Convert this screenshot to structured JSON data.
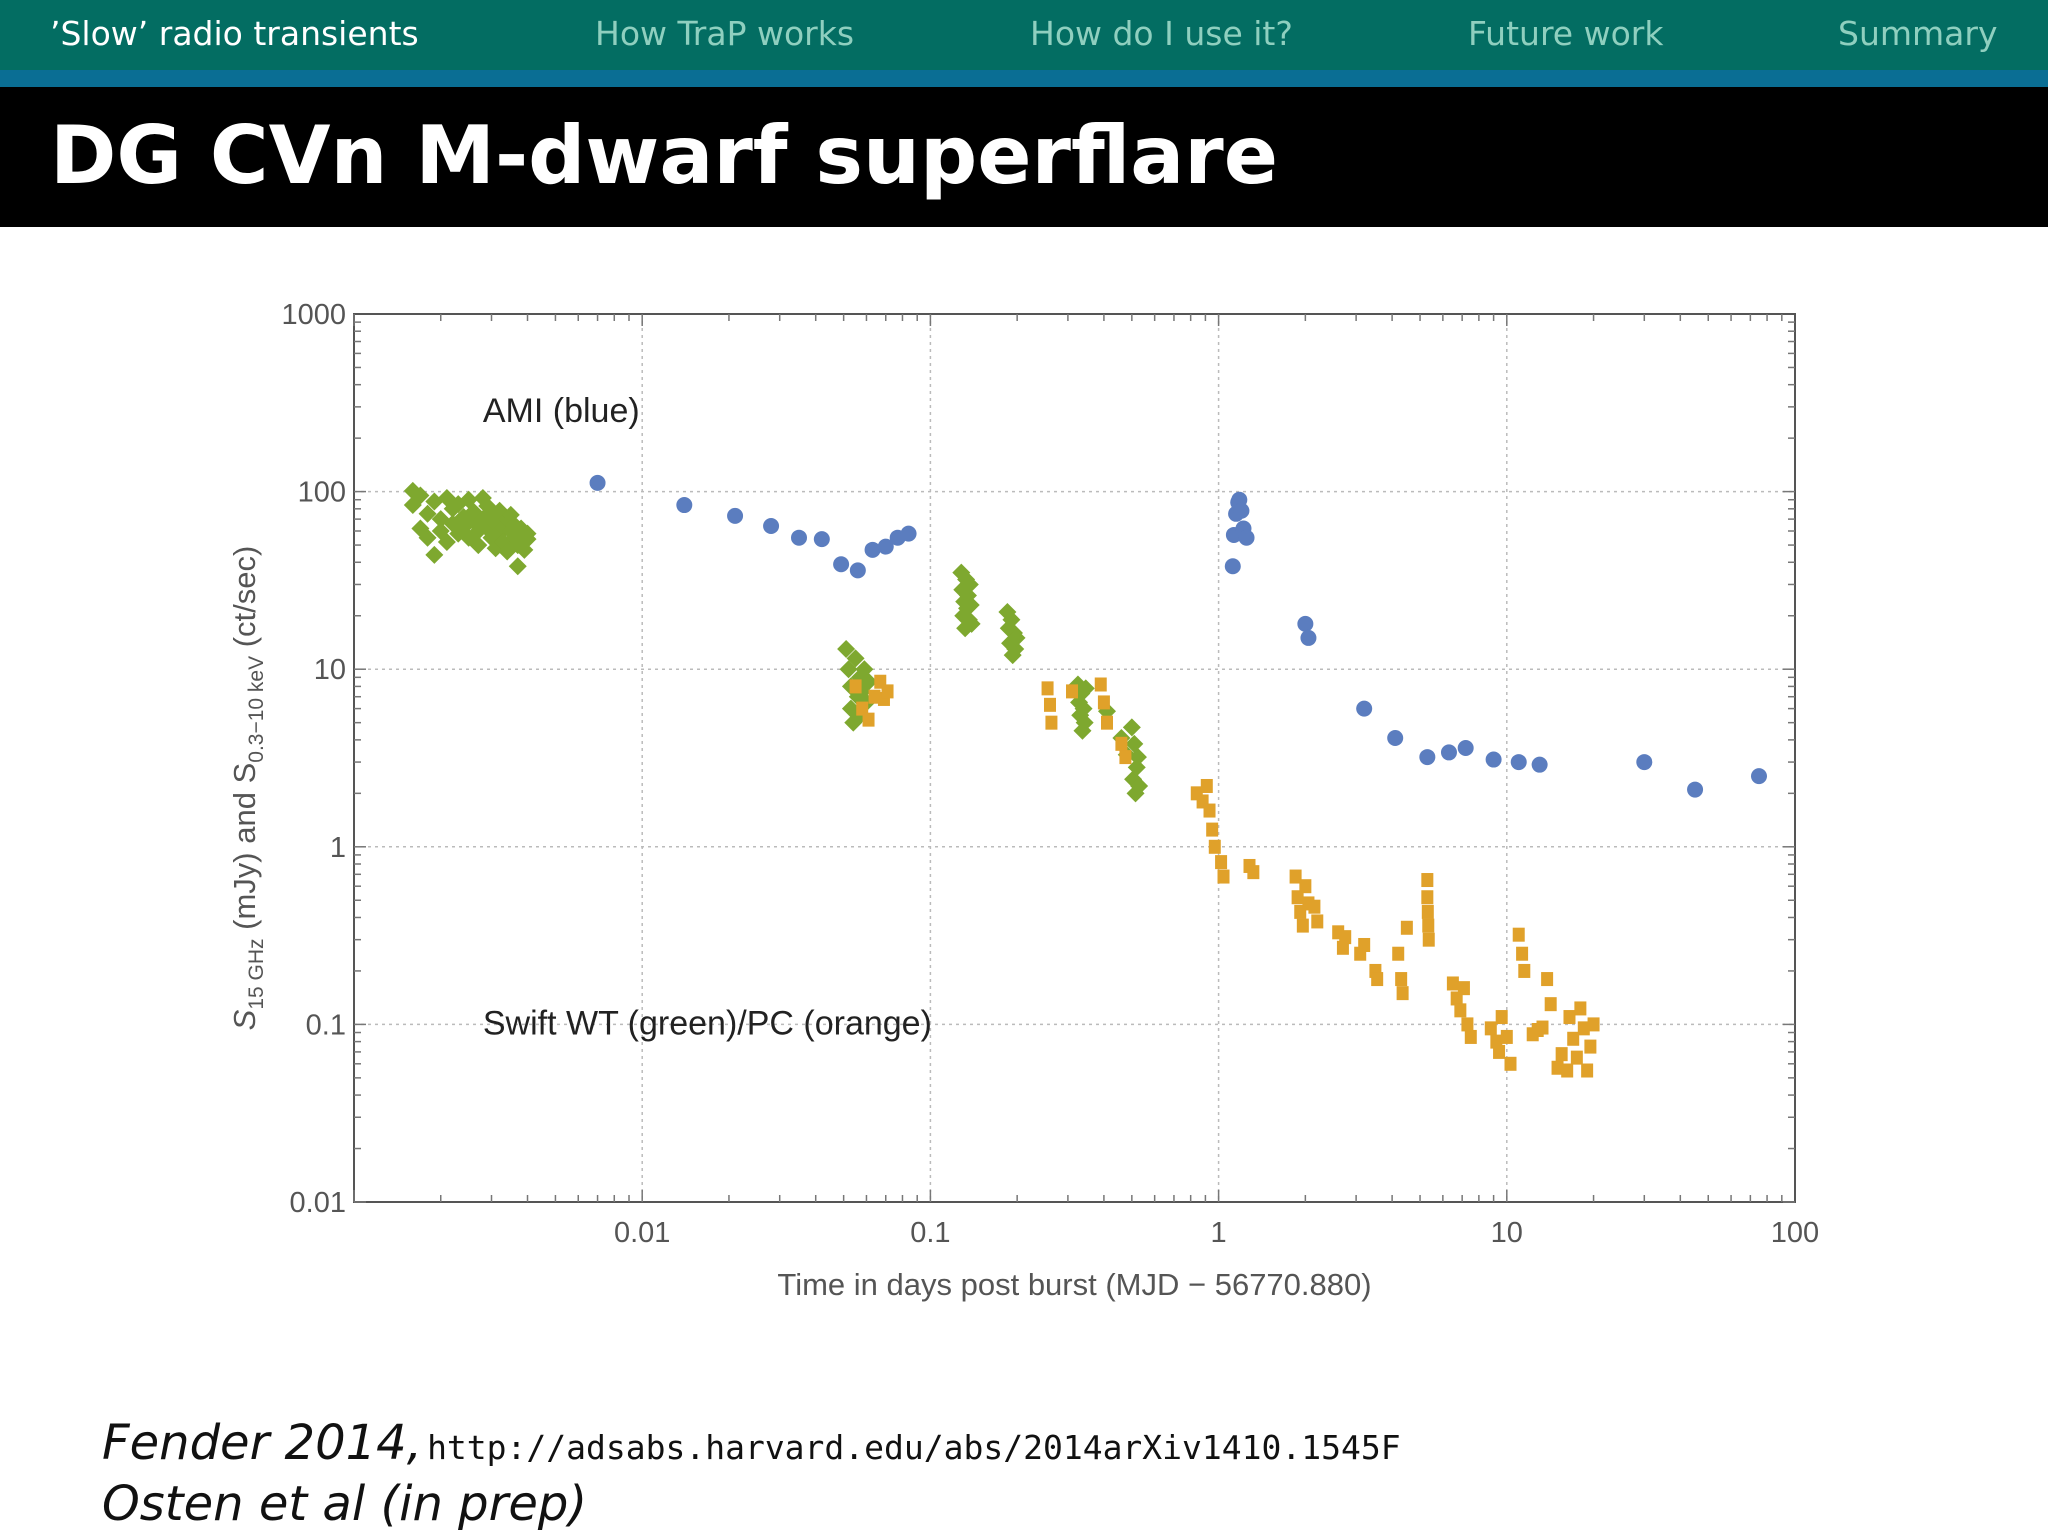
{
  "nav": {
    "items": [
      {
        "label": "’Slow’ radio transients",
        "active": true
      },
      {
        "label": "How TraP works",
        "active": false
      },
      {
        "label": "How do I use it?",
        "active": false
      },
      {
        "label": "Future work",
        "active": false
      },
      {
        "label": "Summary",
        "active": false
      }
    ]
  },
  "slide": {
    "title": "DG CVn M-dwarf superflare"
  },
  "citation": {
    "author1": "Fender 2014,",
    "url": "http://adsabs.harvard.edu/abs/2014arXiv1410.1545F",
    "author2": "Osten et al (in prep)"
  },
  "chart_data": {
    "type": "scatter",
    "xscale": "log",
    "yscale": "log",
    "xlim": [
      0.001,
      100
    ],
    "ylim": [
      0.01,
      1000
    ],
    "grid": true,
    "xticks": [
      {
        "value": 0.01,
        "label": "0.01"
      },
      {
        "value": 0.1,
        "label": "0.1"
      },
      {
        "value": 1,
        "label": "1"
      },
      {
        "value": 10,
        "label": "10"
      },
      {
        "value": 100,
        "label": "100"
      }
    ],
    "yticks": [
      {
        "value": 0.01,
        "label": "0.01"
      },
      {
        "value": 0.1,
        "label": "0.1"
      },
      {
        "value": 1,
        "label": "1"
      },
      {
        "value": 10,
        "label": "10"
      },
      {
        "value": 100,
        "label": "100"
      },
      {
        "value": 1000,
        "label": "1000"
      }
    ],
    "xlabel": "Time in days post burst (MJD − 56770.880)",
    "ylabel": {
      "p1": "S",
      "sub1": "15 GHz",
      "p2": " (mJy) and S",
      "sub2": "0.3−10 keV",
      "p3": " (ct/sec)"
    },
    "annotations": [
      {
        "text": "AMI (blue)",
        "x": 0.0028,
        "y": 280
      },
      {
        "text": "Swift WT (green)/PC (orange)",
        "x": 0.0028,
        "y": 0.1
      }
    ],
    "series": [
      {
        "color": "#5b7dbf",
        "marker": "circle",
        "points": [
          [
            0.007,
            112
          ],
          [
            0.014,
            84
          ],
          [
            0.021,
            73
          ],
          [
            0.028,
            64
          ],
          [
            0.035,
            55
          ],
          [
            0.042,
            54
          ],
          [
            0.049,
            39
          ],
          [
            0.056,
            36
          ],
          [
            0.063,
            47
          ],
          [
            0.07,
            49
          ],
          [
            0.077,
            55
          ],
          [
            0.084,
            58
          ],
          [
            1.12,
            38
          ],
          [
            1.13,
            57
          ],
          [
            1.15,
            75
          ],
          [
            1.17,
            87
          ],
          [
            1.18,
            90
          ],
          [
            1.2,
            78
          ],
          [
            1.22,
            62
          ],
          [
            1.25,
            55
          ],
          [
            2.0,
            18
          ],
          [
            2.05,
            15
          ],
          [
            3.2,
            6.0
          ],
          [
            4.1,
            4.1
          ],
          [
            5.3,
            3.2
          ],
          [
            6.3,
            3.4
          ],
          [
            7.2,
            3.6
          ],
          [
            9.0,
            3.1
          ],
          [
            11.0,
            3.0
          ],
          [
            13.0,
            2.9
          ],
          [
            30.0,
            3.0
          ],
          [
            45.0,
            2.1
          ],
          [
            75.0,
            2.5
          ]
        ]
      },
      {
        "color": "#7ea82f",
        "marker": "diamond",
        "points": [
          [
            0.0016,
            101
          ],
          [
            0.0016,
            84
          ],
          [
            0.0017,
            95
          ],
          [
            0.0017,
            62
          ],
          [
            0.0018,
            75
          ],
          [
            0.0018,
            55
          ],
          [
            0.0019,
            44
          ],
          [
            0.0019,
            88
          ],
          [
            0.002,
            70
          ],
          [
            0.002,
            60
          ],
          [
            0.0021,
            92
          ],
          [
            0.0021,
            52
          ],
          [
            0.0022,
            80
          ],
          [
            0.0022,
            66
          ],
          [
            0.0023,
            58
          ],
          [
            0.0023,
            85
          ],
          [
            0.0024,
            72
          ],
          [
            0.0024,
            63
          ],
          [
            0.0025,
            90
          ],
          [
            0.0025,
            55
          ],
          [
            0.0026,
            68
          ],
          [
            0.0026,
            77
          ],
          [
            0.0027,
            60
          ],
          [
            0.0027,
            50
          ],
          [
            0.0028,
            92
          ],
          [
            0.0028,
            70
          ],
          [
            0.0029,
            62
          ],
          [
            0.0029,
            83
          ],
          [
            0.003,
            55
          ],
          [
            0.003,
            72
          ],
          [
            0.0031,
            48
          ],
          [
            0.0031,
            66
          ],
          [
            0.0032,
            78
          ],
          [
            0.0032,
            58
          ],
          [
            0.0033,
            63
          ],
          [
            0.0033,
            52
          ],
          [
            0.0034,
            70
          ],
          [
            0.0034,
            46
          ],
          [
            0.0035,
            60
          ],
          [
            0.0035,
            74
          ],
          [
            0.0036,
            55
          ],
          [
            0.0036,
            65
          ],
          [
            0.0037,
            50
          ],
          [
            0.0037,
            38
          ],
          [
            0.0038,
            62
          ],
          [
            0.0038,
            57
          ],
          [
            0.0039,
            52
          ],
          [
            0.0039,
            47
          ],
          [
            0.004,
            58
          ],
          [
            0.004,
            54
          ],
          [
            0.051,
            13
          ],
          [
            0.052,
            10
          ],
          [
            0.053,
            8
          ],
          [
            0.053,
            6
          ],
          [
            0.054,
            5
          ],
          [
            0.055,
            11.5
          ],
          [
            0.056,
            7
          ],
          [
            0.057,
            9
          ],
          [
            0.057,
            5.5
          ],
          [
            0.058,
            7.5
          ],
          [
            0.059,
            10
          ],
          [
            0.06,
            6.5
          ],
          [
            0.061,
            8.5
          ],
          [
            0.128,
            35
          ],
          [
            0.129,
            28
          ],
          [
            0.13,
            20
          ],
          [
            0.131,
            24
          ],
          [
            0.132,
            17
          ],
          [
            0.133,
            32
          ],
          [
            0.134,
            22
          ],
          [
            0.135,
            26
          ],
          [
            0.136,
            19
          ],
          [
            0.137,
            30
          ],
          [
            0.138,
            23
          ],
          [
            0.139,
            18
          ],
          [
            0.185,
            21
          ],
          [
            0.187,
            17
          ],
          [
            0.189,
            14
          ],
          [
            0.191,
            19
          ],
          [
            0.193,
            12
          ],
          [
            0.195,
            16
          ],
          [
            0.197,
            13
          ],
          [
            0.199,
            15
          ],
          [
            0.325,
            8.2
          ],
          [
            0.328,
            6.5
          ],
          [
            0.331,
            5.5
          ],
          [
            0.334,
            7.3
          ],
          [
            0.337,
            4.5
          ],
          [
            0.34,
            6.0
          ],
          [
            0.343,
            5.0
          ],
          [
            0.346,
            7.8
          ],
          [
            0.41,
            5.8
          ],
          [
            0.46,
            4.1
          ],
          [
            0.48,
            3.3
          ],
          [
            0.5,
            4.7
          ],
          [
            0.505,
            2.4
          ],
          [
            0.51,
            3.8
          ],
          [
            0.515,
            2.0
          ],
          [
            0.52,
            2.8
          ],
          [
            0.525,
            3.2
          ],
          [
            0.53,
            2.2
          ]
        ]
      },
      {
        "color": "#e0a12a",
        "marker": "square",
        "points": [
          [
            0.055,
            8
          ],
          [
            0.058,
            6
          ],
          [
            0.061,
            5.2
          ],
          [
            0.064,
            7
          ],
          [
            0.067,
            8.5
          ],
          [
            0.069,
            6.8
          ],
          [
            0.071,
            7.5
          ],
          [
            0.255,
            7.8
          ],
          [
            0.26,
            6.3
          ],
          [
            0.263,
            5.0
          ],
          [
            0.31,
            7.5
          ],
          [
            0.39,
            8.2
          ],
          [
            0.4,
            6.5
          ],
          [
            0.41,
            5.0
          ],
          [
            0.46,
            3.8
          ],
          [
            0.475,
            3.2
          ],
          [
            0.84,
            2.0
          ],
          [
            0.88,
            1.8
          ],
          [
            0.91,
            2.2
          ],
          [
            0.93,
            1.6
          ],
          [
            0.95,
            1.25
          ],
          [
            0.97,
            1.0
          ],
          [
            1.02,
            0.82
          ],
          [
            1.04,
            0.68
          ],
          [
            1.28,
            0.78
          ],
          [
            1.32,
            0.72
          ],
          [
            1.85,
            0.68
          ],
          [
            1.88,
            0.52
          ],
          [
            1.92,
            0.43
          ],
          [
            1.96,
            0.36
          ],
          [
            2.0,
            0.6
          ],
          [
            2.05,
            0.48
          ],
          [
            2.15,
            0.46
          ],
          [
            2.2,
            0.38
          ],
          [
            2.6,
            0.33
          ],
          [
            2.7,
            0.27
          ],
          [
            2.75,
            0.31
          ],
          [
            3.1,
            0.25
          ],
          [
            3.2,
            0.28
          ],
          [
            3.5,
            0.2
          ],
          [
            3.55,
            0.18
          ],
          [
            4.2,
            0.25
          ],
          [
            4.3,
            0.18
          ],
          [
            4.35,
            0.15
          ],
          [
            4.5,
            0.35
          ],
          [
            5.3,
            0.65
          ],
          [
            5.3,
            0.52
          ],
          [
            5.32,
            0.43
          ],
          [
            5.34,
            0.36
          ],
          [
            5.36,
            0.3
          ],
          [
            6.5,
            0.17
          ],
          [
            6.7,
            0.14
          ],
          [
            6.9,
            0.12
          ],
          [
            7.1,
            0.16
          ],
          [
            7.3,
            0.1
          ],
          [
            7.5,
            0.085
          ],
          [
            8.8,
            0.095
          ],
          [
            9.2,
            0.08
          ],
          [
            9.4,
            0.07
          ],
          [
            9.6,
            0.11
          ],
          [
            10.0,
            0.085
          ],
          [
            10.3,
            0.06
          ],
          [
            11.0,
            0.32
          ],
          [
            11.3,
            0.25
          ],
          [
            11.5,
            0.2
          ],
          [
            12.3,
            0.088
          ],
          [
            12.8,
            0.093
          ],
          [
            13.3,
            0.096
          ],
          [
            13.8,
            0.18
          ],
          [
            14.2,
            0.13
          ],
          [
            15.0,
            0.057
          ],
          [
            15.5,
            0.068
          ],
          [
            16.2,
            0.055
          ],
          [
            16.5,
            0.11
          ],
          [
            17.0,
            0.083
          ],
          [
            17.5,
            0.065
          ],
          [
            18.0,
            0.123
          ],
          [
            18.5,
            0.095
          ],
          [
            19.0,
            0.055
          ],
          [
            19.5,
            0.075
          ],
          [
            20.0,
            0.1
          ]
        ]
      }
    ]
  }
}
